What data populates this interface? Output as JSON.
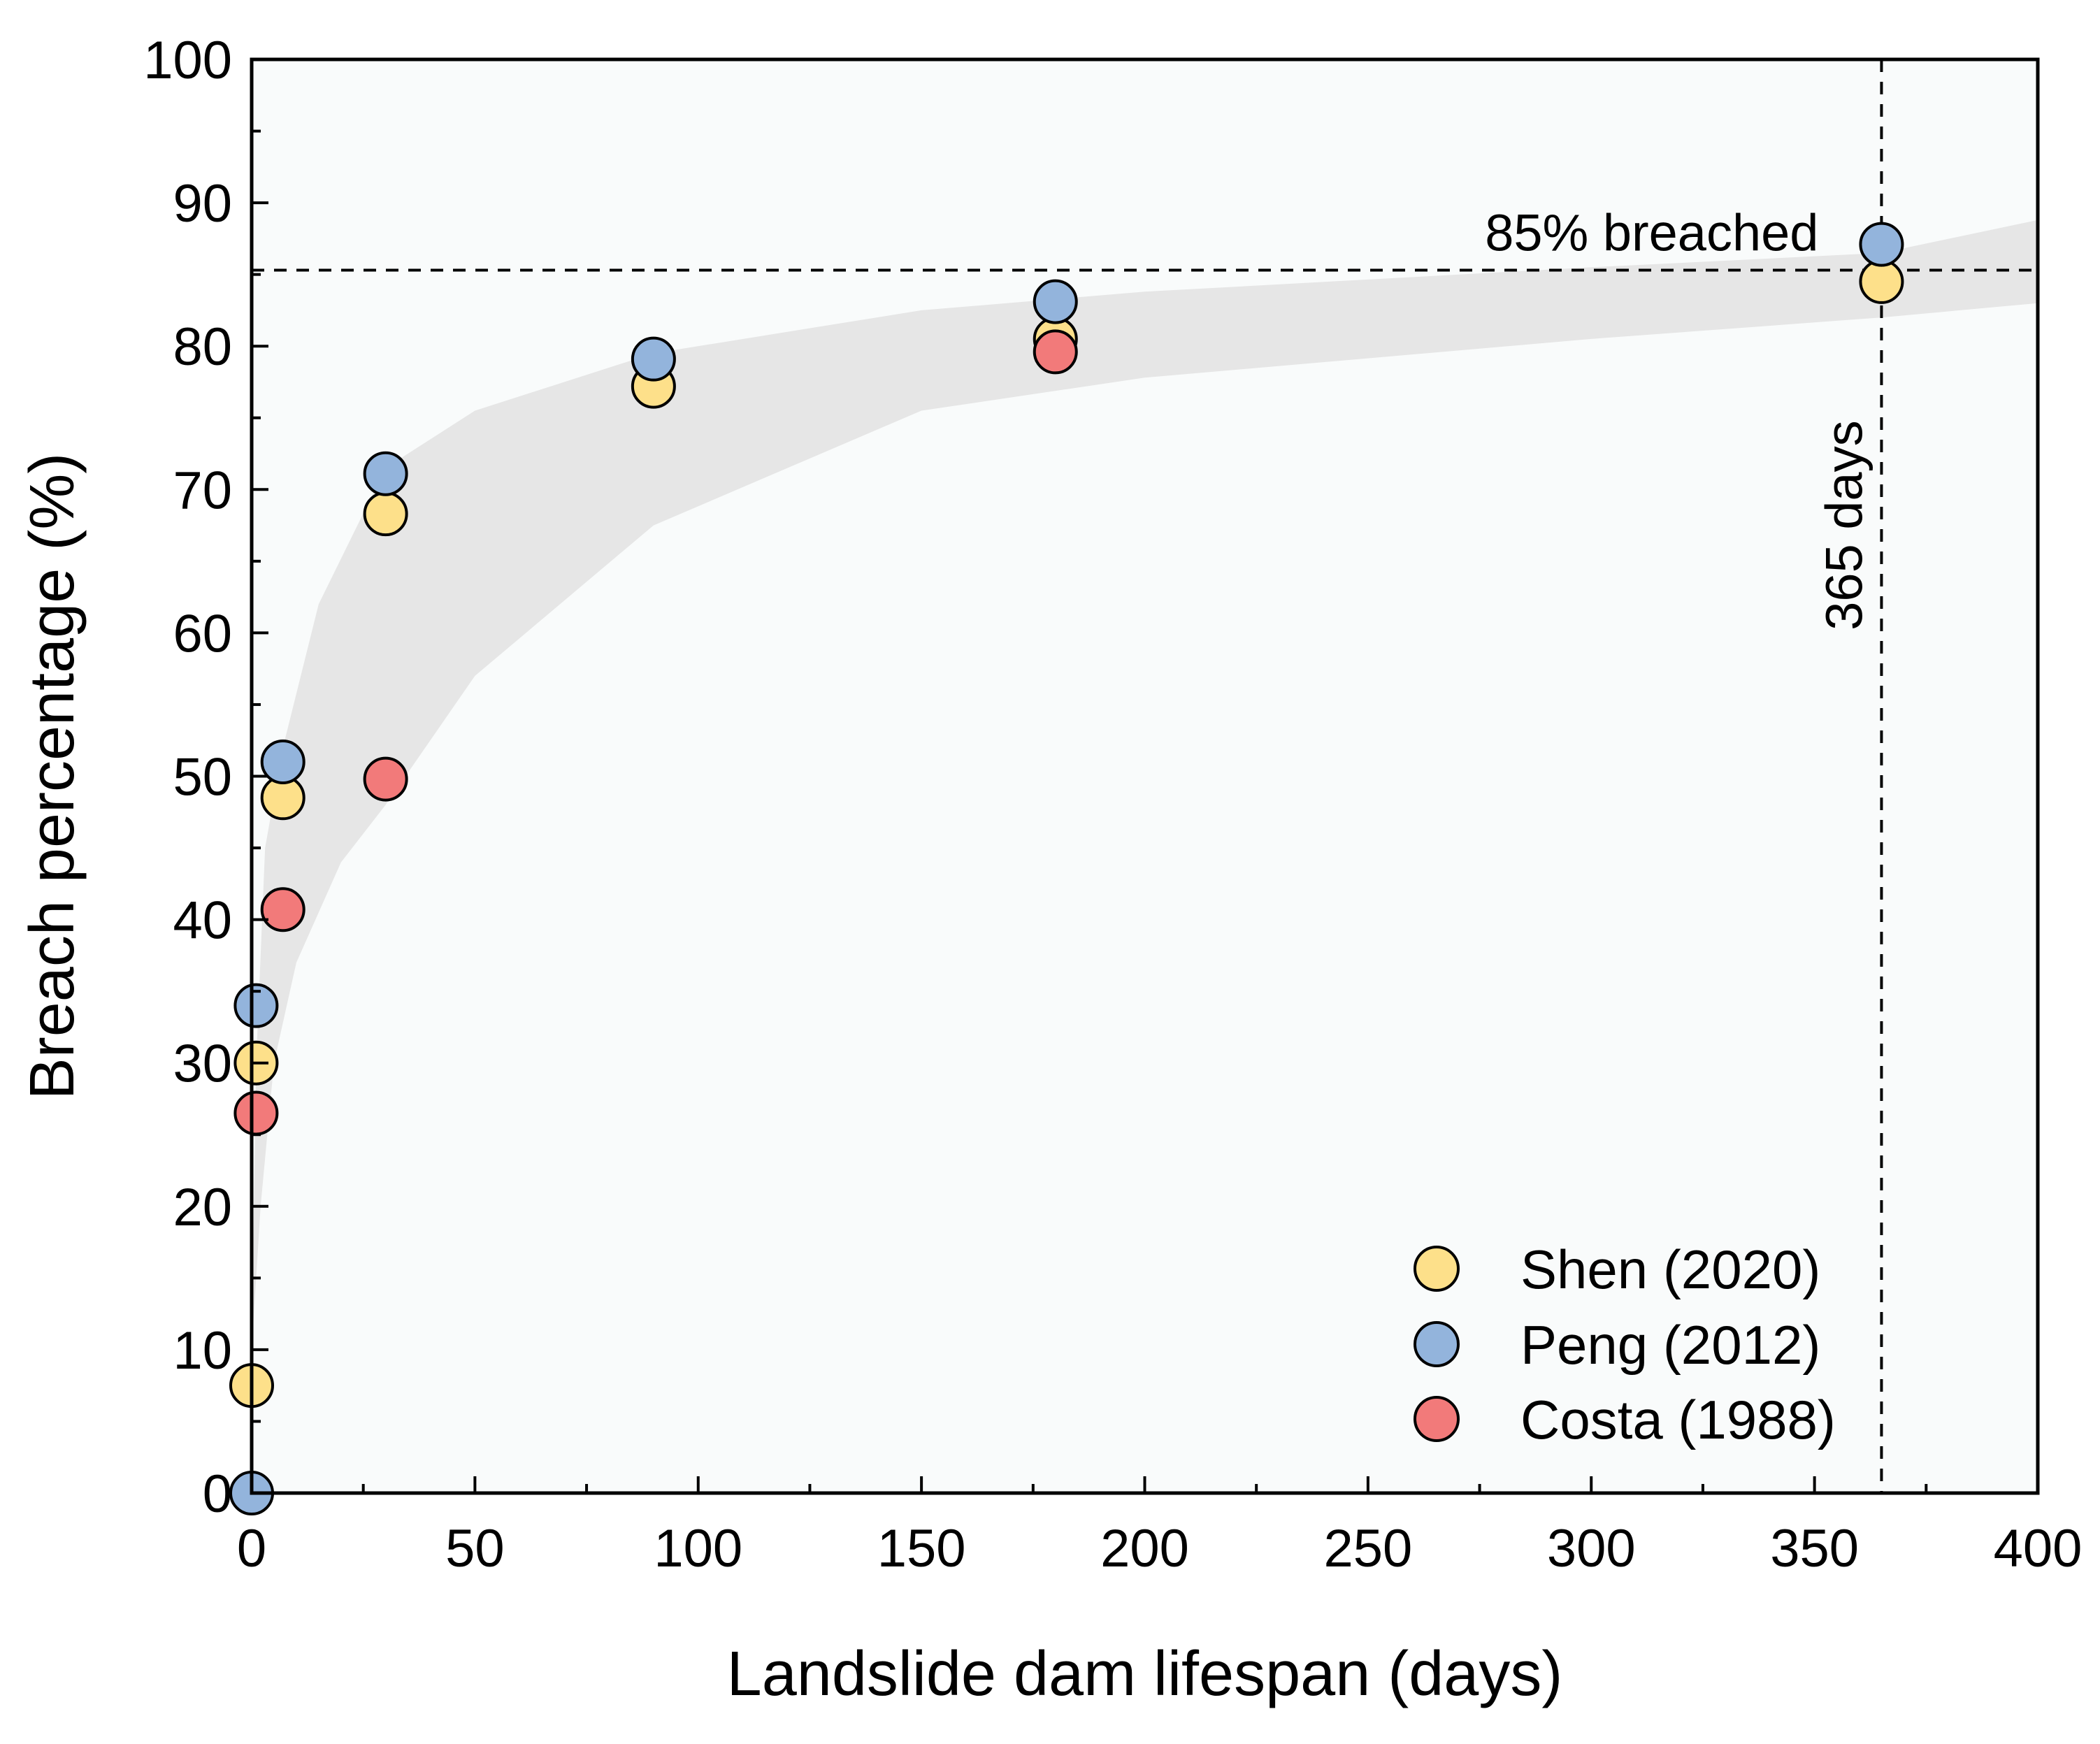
{
  "chart_data": {
    "type": "scatter",
    "title": "",
    "xlabel": "Landslide dam lifespan (days)",
    "ylabel": "Breach percentage (%)",
    "xlim": [
      0,
      400
    ],
    "ylim": [
      0,
      100
    ],
    "x_ticks": [
      0,
      50,
      100,
      150,
      200,
      250,
      300,
      350,
      400
    ],
    "y_ticks": [
      0,
      10,
      20,
      30,
      40,
      50,
      60,
      70,
      80,
      90,
      100
    ],
    "grid": false,
    "legend_position": "bottom-right",
    "series": [
      {
        "name": "Shen (2020)",
        "color": "#fde08a",
        "points": [
          [
            0,
            7.5
          ],
          [
            1,
            30
          ],
          [
            7,
            48.5
          ],
          [
            30,
            68.3
          ],
          [
            90,
            77.2
          ],
          [
            180,
            80.5
          ],
          [
            365,
            84.5
          ]
        ]
      },
      {
        "name": "Peng (2012)",
        "color": "#93b4dc",
        "points": [
          [
            0,
            0
          ],
          [
            1,
            34
          ],
          [
            7,
            51
          ],
          [
            30,
            71.1
          ],
          [
            90,
            79.1
          ],
          [
            180,
            83.1
          ],
          [
            365,
            87.1
          ]
        ]
      },
      {
        "name": "Costa (1988)",
        "color": "#f27a7a",
        "points": [
          [
            1,
            26.5
          ],
          [
            7,
            40.7
          ],
          [
            30,
            49.8
          ],
          [
            180,
            79.6
          ]
        ]
      }
    ],
    "band": {
      "upper": [
        [
          0,
          10
        ],
        [
          1,
          30
        ],
        [
          3,
          45
        ],
        [
          7,
          52
        ],
        [
          15,
          62
        ],
        [
          30,
          71.5
        ],
        [
          50,
          75.5
        ],
        [
          90,
          79.5
        ],
        [
          150,
          82.5
        ],
        [
          200,
          83.8
        ],
        [
          300,
          85.5
        ],
        [
          365,
          86.5
        ],
        [
          400,
          88.8
        ]
      ],
      "lower": [
        [
          0,
          10
        ],
        [
          2,
          20
        ],
        [
          5,
          30
        ],
        [
          10,
          37
        ],
        [
          20,
          44
        ],
        [
          30,
          48
        ],
        [
          50,
          57
        ],
        [
          90,
          67.5
        ],
        [
          150,
          75.5
        ],
        [
          200,
          77.8
        ],
        [
          300,
          80.5
        ],
        [
          365,
          82
        ],
        [
          400,
          83
        ]
      ],
      "color": "#e6e6e6"
    },
    "reference_lines": {
      "horizontal": {
        "value": 85.3,
        "label": "85% breached"
      },
      "vertical": {
        "value": 365,
        "label": "365 days"
      }
    }
  }
}
